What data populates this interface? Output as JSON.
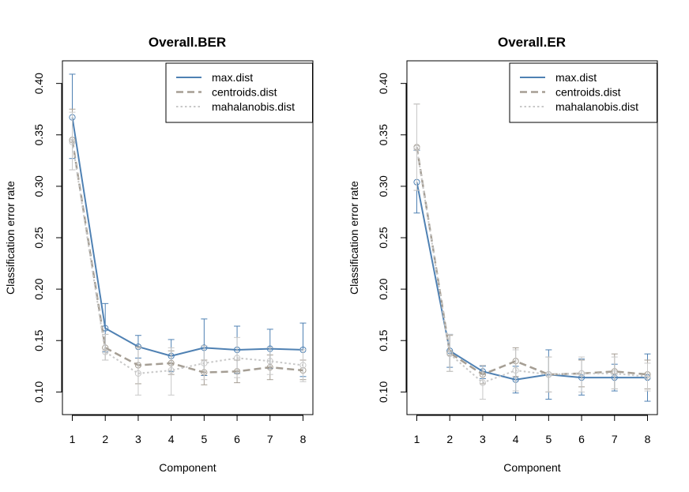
{
  "chart_data": [
    {
      "type": "line",
      "title": "Overall.BER",
      "xlabel": "Component",
      "ylabel": "Classification error rate",
      "x": [
        1,
        2,
        3,
        4,
        5,
        6,
        7,
        8
      ],
      "xlim": [
        0.7,
        8.3
      ],
      "ylim": [
        0.078,
        0.422
      ],
      "yticks": [
        0.1,
        0.15,
        0.2,
        0.25,
        0.3,
        0.35,
        0.4
      ],
      "ytick_labels": [
        "0.10",
        "0.15",
        "0.20",
        "0.25",
        "0.30",
        "0.35",
        "0.40"
      ],
      "xtick_labels": [
        "1",
        "2",
        "3",
        "4",
        "5",
        "6",
        "7",
        "8"
      ],
      "legend": "top-right",
      "grid": false,
      "series": [
        {
          "name": "max.dist",
          "style": "solid",
          "color": "#4f81b3",
          "values": [
            0.367,
            0.162,
            0.144,
            0.135,
            0.143,
            0.141,
            0.142,
            0.141
          ],
          "error_low": [
            0.327,
            0.139,
            0.133,
            0.12,
            0.116,
            0.118,
            0.123,
            0.115
          ],
          "error_high": [
            0.409,
            0.186,
            0.155,
            0.151,
            0.171,
            0.164,
            0.161,
            0.167
          ]
        },
        {
          "name": "centroids.dist",
          "style": "dashed",
          "color": "#a59e94",
          "values": [
            0.345,
            0.143,
            0.126,
            0.128,
            0.119,
            0.12,
            0.124,
            0.121
          ],
          "error_low": [
            0.316,
            0.131,
            0.108,
            0.117,
            0.107,
            0.109,
            0.112,
            0.112
          ],
          "error_high": [
            0.375,
            0.156,
            0.144,
            0.14,
            0.131,
            0.131,
            0.136,
            0.131
          ]
        },
        {
          "name": "mahalanobis.dist",
          "style": "dotted",
          "color": "#c8c8c8",
          "values": [
            0.343,
            0.139,
            0.118,
            0.121,
            0.128,
            0.133,
            0.13,
            0.126
          ],
          "error_low": [
            0.316,
            0.131,
            0.097,
            0.097,
            0.112,
            0.114,
            0.117,
            0.11
          ],
          "error_high": [
            0.372,
            0.156,
            0.143,
            0.143,
            0.145,
            0.153,
            0.143,
            0.141
          ]
        }
      ]
    },
    {
      "type": "line",
      "title": "Overall.ER",
      "xlabel": "Component",
      "ylabel": "Classification error rate",
      "x": [
        1,
        2,
        3,
        4,
        5,
        6,
        7,
        8
      ],
      "xlim": [
        0.7,
        8.3
      ],
      "ylim": [
        0.078,
        0.422
      ],
      "yticks": [
        0.1,
        0.15,
        0.2,
        0.25,
        0.3,
        0.35,
        0.4
      ],
      "ytick_labels": [
        "0.10",
        "0.15",
        "0.20",
        "0.25",
        "0.30",
        "0.35",
        "0.40"
      ],
      "xtick_labels": [
        "1",
        "2",
        "3",
        "4",
        "5",
        "6",
        "7",
        "8"
      ],
      "legend": "top-right",
      "grid": false,
      "series": [
        {
          "name": "max.dist",
          "style": "solid",
          "color": "#4f81b3",
          "values": [
            0.304,
            0.14,
            0.12,
            0.112,
            0.117,
            0.114,
            0.114,
            0.114
          ],
          "error_low": [
            0.274,
            0.124,
            0.113,
            0.099,
            0.093,
            0.097,
            0.101,
            0.091
          ],
          "error_high": [
            0.335,
            0.156,
            0.125,
            0.125,
            0.141,
            0.132,
            0.127,
            0.137
          ]
        },
        {
          "name": "centroids.dist",
          "style": "dashed",
          "color": "#a59e94",
          "values": [
            0.338,
            0.138,
            0.117,
            0.13,
            0.117,
            0.118,
            0.12,
            0.117
          ],
          "error_low": [
            0.296,
            0.12,
            0.108,
            0.115,
            0.1,
            0.105,
            0.103,
            0.103
          ],
          "error_high": [
            0.38,
            0.155,
            0.126,
            0.143,
            0.134,
            0.131,
            0.137,
            0.131
          ]
        },
        {
          "name": "mahalanobis.dist",
          "style": "dotted",
          "color": "#c8c8c8",
          "values": [
            0.337,
            0.137,
            0.109,
            0.121,
            0.117,
            0.118,
            0.118,
            0.115
          ],
          "error_low": [
            0.296,
            0.12,
            0.093,
            0.101,
            0.1,
            0.1,
            0.103,
            0.101
          ],
          "error_high": [
            0.38,
            0.156,
            0.126,
            0.141,
            0.134,
            0.134,
            0.134,
            0.128
          ]
        }
      ]
    }
  ]
}
